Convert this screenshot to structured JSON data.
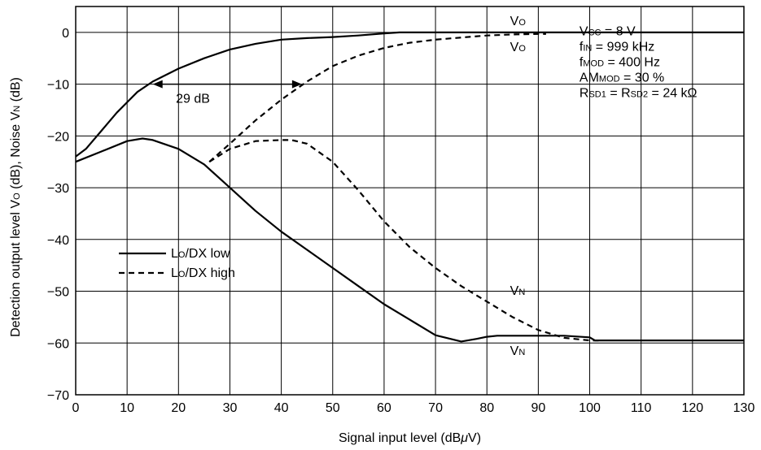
{
  "chart_data": {
    "type": "line",
    "xlabel": "Signal input level (dBμV)",
    "xlabel_parts": [
      "Signal input level (dB",
      "μ",
      "V)"
    ],
    "ylabel_parts": [
      "Detection output level V",
      "O",
      " (dB), Noise V",
      "N",
      " (dB)"
    ],
    "xlim": [
      0,
      130
    ],
    "ylim": [
      -70,
      5
    ],
    "xticks": [
      0,
      10,
      20,
      30,
      40,
      50,
      60,
      70,
      80,
      90,
      100,
      110,
      120,
      130
    ],
    "yticks": [
      0,
      -10,
      -20,
      -30,
      -40,
      -50,
      -60,
      -70
    ],
    "ytick_labels": [
      "0",
      "−10",
      "−20",
      "−30",
      "−40",
      "−50",
      "−60",
      "−70"
    ],
    "grid": true,
    "legend_position": "left-middle",
    "legend": [
      {
        "label_main": "L",
        "label_sub": "O",
        "label_rest": "/DX low",
        "style": "solid"
      },
      {
        "label_main": "L",
        "label_sub": "O",
        "label_rest": "/DX high",
        "style": "dashed"
      }
    ],
    "series": [
      {
        "style": "solid",
        "curve": "Vo",
        "x": [
          0,
          2,
          5,
          8,
          10,
          12,
          15,
          20,
          25,
          30,
          35,
          40,
          45,
          50,
          55,
          60,
          63,
          70,
          80,
          90,
          100,
          110,
          120,
          130
        ],
        "y": [
          -24,
          -22.5,
          -19,
          -15.5,
          -13.5,
          -11.5,
          -9.5,
          -7,
          -5,
          -3.3,
          -2.2,
          -1.4,
          -1.1,
          -0.9,
          -0.6,
          -0.2,
          0,
          0,
          0,
          0,
          0,
          0,
          0,
          0
        ]
      },
      {
        "style": "solid",
        "curve": "Vn",
        "x": [
          0,
          5,
          10,
          13,
          15,
          20,
          25,
          30,
          35,
          40,
          45,
          50,
          55,
          60,
          65,
          70,
          75,
          78,
          80,
          82,
          85,
          90,
          95,
          100,
          101,
          110,
          120,
          130
        ],
        "y": [
          -25,
          -23,
          -21,
          -20.5,
          -20.8,
          -22.5,
          -25.5,
          -30,
          -34.5,
          -38.5,
          -42,
          -45.5,
          -49,
          -52.5,
          -55.5,
          -58.5,
          -59.7,
          -59.2,
          -58.8,
          -58.6,
          -58.6,
          -58.6,
          -58.6,
          -58.9,
          -59.5,
          -59.5,
          -59.5,
          -59.5
        ]
      },
      {
        "style": "dashed",
        "curve": "Vo",
        "x": [
          26,
          30,
          35,
          40,
          45,
          50,
          55,
          60,
          65,
          70,
          75,
          80,
          85,
          90,
          91.5
        ],
        "y": [
          -25,
          -21.5,
          -17,
          -13,
          -9.5,
          -6.5,
          -4.5,
          -3,
          -2,
          -1.4,
          -1,
          -0.6,
          -0.4,
          -0.3,
          -0.3
        ]
      },
      {
        "style": "dashed",
        "curve": "Vn",
        "x": [
          26,
          30,
          35,
          40,
          42,
          45,
          50,
          55,
          60,
          65,
          70,
          75,
          80,
          85,
          90,
          95,
          100,
          102
        ],
        "y": [
          -25,
          -22.5,
          -21,
          -20.8,
          -20.8,
          -21.5,
          -25,
          -30.5,
          -36.5,
          -41.5,
          -45.5,
          -49,
          -52,
          -55,
          -57.5,
          -59,
          -59.5,
          -59.5
        ]
      }
    ],
    "annotations": {
      "vo_top": {
        "main": "V",
        "sub": "O"
      },
      "vo_mid": {
        "main": "V",
        "sub": "O"
      },
      "vn_mid": {
        "main": "V",
        "sub": "N"
      },
      "vn_bottom": {
        "main": "V",
        "sub": "N"
      },
      "gap_label": "29 dB",
      "gap_arrow": {
        "y": -10,
        "x_from": 15,
        "x_to": 44
      },
      "conditions": [
        {
          "parts": [
            [
              "V",
              ""
            ],
            [
              "CC",
              "sub"
            ],
            [
              " = 8 V",
              ""
            ]
          ]
        },
        {
          "parts": [
            [
              "f",
              ""
            ],
            [
              "IN",
              "sub"
            ],
            [
              " = 999 kHz",
              ""
            ]
          ]
        },
        {
          "parts": [
            [
              "f",
              ""
            ],
            [
              "MOD",
              "sub"
            ],
            [
              " = 400 Hz",
              ""
            ]
          ]
        },
        {
          "parts": [
            [
              "AM",
              ""
            ],
            [
              "MOD",
              "sub"
            ],
            [
              " = 30 %",
              ""
            ]
          ]
        },
        {
          "parts": [
            [
              "R",
              ""
            ],
            [
              "SD1",
              "sub"
            ],
            [
              " = R",
              ""
            ],
            [
              "SD2",
              "sub"
            ],
            [
              " = 24 kΩ",
              ""
            ]
          ]
        }
      ]
    }
  }
}
